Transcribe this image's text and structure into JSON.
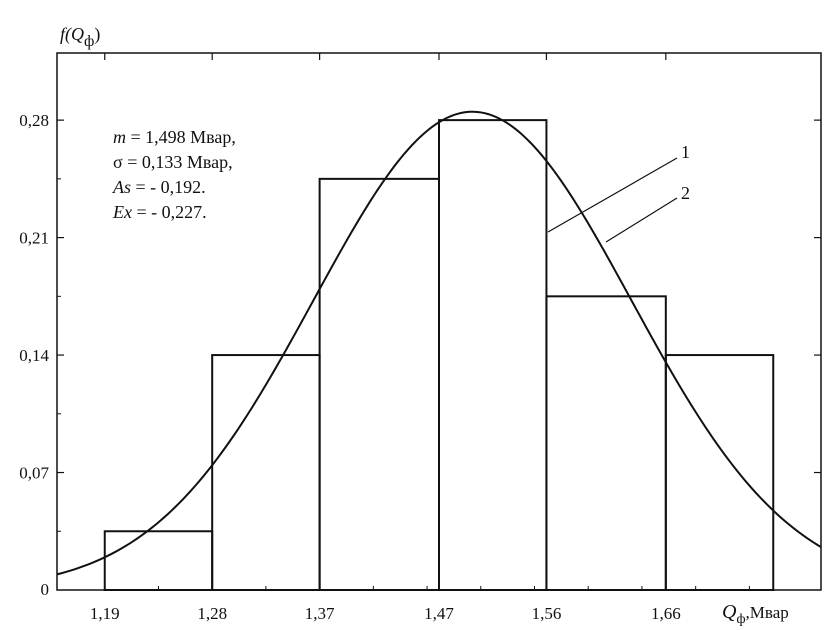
{
  "chart_data": {
    "type": "bar",
    "y_title": {
      "main": "f(",
      "sym": "Q",
      "sub": "ф",
      "close": ")"
    },
    "x_title": {
      "sym": "Q",
      "sub": "ф",
      "unit": ",Мвар"
    },
    "x_ticks": [
      "1,19",
      "1,28",
      "1,37",
      "1,47",
      "1,56",
      "1,66"
    ],
    "y_ticks": [
      "0",
      "0,07",
      "0,14",
      "0,21",
      "0,28"
    ],
    "ylim": [
      0,
      0.32
    ],
    "xlim": [
      1.15,
      1.79
    ],
    "grid": false,
    "bins": [
      {
        "x0": 1.19,
        "x1": 1.28,
        "value": 0.035
      },
      {
        "x0": 1.28,
        "x1": 1.37,
        "value": 0.14
      },
      {
        "x0": 1.37,
        "x1": 1.47,
        "value": 0.245
      },
      {
        "x0": 1.47,
        "x1": 1.56,
        "value": 0.28
      },
      {
        "x0": 1.56,
        "x1": 1.66,
        "value": 0.175
      },
      {
        "x0": 1.66,
        "x1": 1.75,
        "value": 0.14
      }
    ],
    "curve": {
      "type": "normal",
      "mean": 1.498,
      "std": 0.133,
      "peak": 0.285
    },
    "stats": [
      {
        "label": "m",
        "text": " = 1,498 Мвар,"
      },
      {
        "label": "σ",
        "text": " =  0,133 Мвар,"
      },
      {
        "label": "As",
        "text": " = - 0,192."
      },
      {
        "label": "Ex",
        "text": " = - 0,227."
      }
    ],
    "leaders": [
      {
        "label": "1",
        "target": "histogram"
      },
      {
        "label": "2",
        "target": "curve"
      }
    ]
  }
}
